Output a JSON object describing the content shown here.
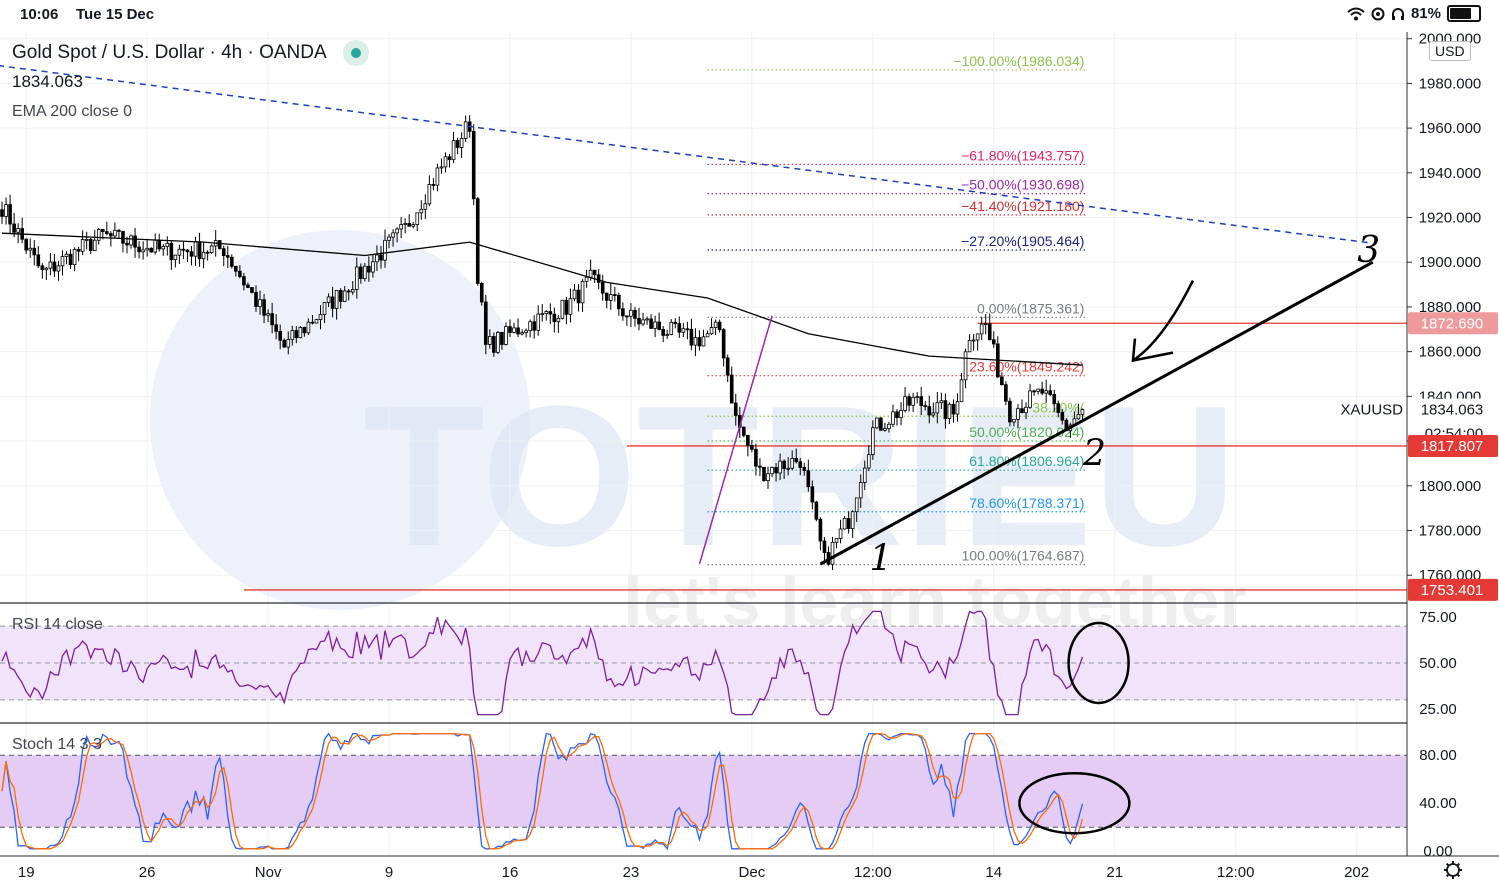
{
  "status_bar": {
    "time": "10:06",
    "date": "Tue 15 Dec",
    "battery": "81%",
    "battery_fraction": 0.81
  },
  "header": {
    "symbol_title": "Gold Spot / U.S. Dollar · 4h · OANDA",
    "last_price": "1834.063",
    "indicator": "EMA 200 close 0",
    "currency": "USD"
  },
  "colors": {
    "ema": "#000000",
    "trendline_dashed": "#1a3fbf",
    "rsi": "#7b1fa2",
    "stoch_k": "#2962ff",
    "stoch_d": "#ff6d00",
    "band_rsi": "#f1e4fa",
    "band_stoch": "#e4ccf4",
    "level_red": "#e53935",
    "watermark": "#dde6f5"
  },
  "watermark": {
    "text": "TOTRIEU",
    "tagline": "let's learn together"
  },
  "axis": {
    "price_ticks": [
      "2000.000",
      "1980.000",
      "1960.000",
      "1940.000",
      "1920.000",
      "1900.000",
      "1880.000",
      "1860.000",
      "1840.000",
      "1820.000",
      "1800.000",
      "1780.000",
      "1760.000"
    ],
    "price_tick_values": [
      2000,
      1980,
      1960,
      1940,
      1920,
      1900,
      1880,
      1860,
      1840,
      1820,
      1800,
      1780,
      1760
    ],
    "time_ticks": [
      "19",
      "26",
      "Nov",
      "9",
      "16",
      "23",
      "Dec",
      "12:00",
      "14",
      "21",
      "12:00",
      "202"
    ],
    "time_tick_index": [
      6,
      36,
      66,
      96,
      126,
      156,
      186,
      216,
      246,
      276,
      306,
      336
    ],
    "rsi_ticks": [
      "75.00",
      "50.00",
      "25.00"
    ],
    "rsi_tick_values": [
      75,
      50,
      25
    ],
    "stoch_ticks": [
      "80.00",
      "40.00",
      "0.00"
    ],
    "stoch_tick_values": [
      80,
      40,
      0
    ]
  },
  "price_tags": [
    {
      "label": "1872.690",
      "value": 1872.69,
      "bg": "#ef9a9a"
    },
    {
      "symbol": "XAUUSD",
      "label": "1834.063",
      "value": 1834.063,
      "countdown": "02:54:00"
    },
    {
      "label": "1817.807",
      "value": 1817.807,
      "bg": "#e53935"
    },
    {
      "label": "1753.401",
      "value": 1753.401,
      "bg": "#e53935"
    }
  ],
  "fib_levels": [
    {
      "label": "−100.00%(1986.034)",
      "value": 1986.034,
      "color": "#8bc34a"
    },
    {
      "label": "−61.80%(1943.757)",
      "value": 1943.757,
      "color": "#e91e63"
    },
    {
      "label": "−50.00%(1930.698)",
      "value": 1930.698,
      "color": "#9c27b0"
    },
    {
      "label": "−41.40%(1921.180)",
      "value": 1921.18,
      "color": "#d32f2f"
    },
    {
      "label": "−27.20%(1905.464)",
      "value": 1905.464,
      "color": "#1a237e"
    },
    {
      "label": "0.00%(1875.361)",
      "value": 1875.361,
      "color": "#787b86"
    },
    {
      "label": "23.60%(1849.242)",
      "value": 1849.242,
      "color": "#e53935"
    },
    {
      "label": "38.20%(",
      "value": 1831.086,
      "color": "#8bc34a"
    },
    {
      "label": "50.00%(1820.024)",
      "value": 1820.024,
      "color": "#4caf50"
    },
    {
      "label": "61.80%(1806.964)",
      "value": 1806.964,
      "color": "#26a69a"
    },
    {
      "label": "78.60%(1788.371)",
      "value": 1788.371,
      "color": "#2196f3"
    },
    {
      "label": "100.00%(1764.687)",
      "value": 1764.687,
      "color": "#787b86"
    }
  ],
  "horizontal_levels": [
    {
      "value": 1872.69,
      "from_bar": 242,
      "color": "#e53935"
    },
    {
      "value": 1817.807,
      "from_bar": 155,
      "color": "#e53935"
    },
    {
      "value": 1753.401,
      "from_bar": 60,
      "color": "#e53935"
    }
  ],
  "trendlines": [
    {
      "kind": "dashed-resistance",
      "from": [
        -1,
        1988
      ],
      "to": [
        340,
        1908.5
      ],
      "color": "#1a3fbf"
    },
    {
      "kind": "ascending-support",
      "from": [
        203,
        1765
      ],
      "to": [
        340,
        1900
      ],
      "color": "#000000"
    },
    {
      "kind": "impulse",
      "from": [
        173,
        1765
      ],
      "to": [
        191,
        1876
      ],
      "color": "#9c27b0"
    }
  ],
  "handwriting": [
    {
      "kind": "number",
      "text": "1",
      "at": [
        218,
        1762
      ]
    },
    {
      "kind": "number",
      "text": "2",
      "at": [
        271,
        1809
      ]
    },
    {
      "kind": "number",
      "text": "3",
      "at": [
        339,
        1900
      ]
    },
    {
      "kind": "arrow",
      "at": [
        283,
        1856
      ]
    },
    {
      "kind": "circle",
      "pane": "rsi",
      "at": [
        272,
        50
      ]
    },
    {
      "kind": "circle",
      "pane": "stoch",
      "at": [
        266,
        40
      ]
    }
  ],
  "chart_data": {
    "type": "candlestick",
    "title": "Gold Spot / U.S. Dollar · 4h · OANDA",
    "xlabel": "",
    "ylabel": "USD",
    "ylim": [
      1748,
      2003
    ],
    "bar_count": 269,
    "projected_bars": 80,
    "key_points": [
      {
        "label": "local high",
        "bar": 116,
        "value": 1964
      },
      {
        "label": "swing low",
        "bar": 204,
        "value": 1765
      },
      {
        "label": "swing high",
        "bar": 243,
        "value": 1875
      },
      {
        "label": "last",
        "bar": 268,
        "value": 1834.063
      }
    ],
    "ema200_points": [
      [
        0,
        1913
      ],
      [
        50,
        1909
      ],
      [
        90,
        1903
      ],
      [
        116,
        1909
      ],
      [
        150,
        1891
      ],
      [
        175,
        1884
      ],
      [
        200,
        1868
      ],
      [
        230,
        1858
      ],
      [
        268,
        1854
      ]
    ],
    "rsi": {
      "name": "RSI 14 close",
      "ylim": [
        18,
        82
      ],
      "band": [
        30,
        70
      ]
    },
    "stoch": {
      "name": "Stoch 14 3 3",
      "ylim": [
        -4,
        106
      ],
      "band": [
        20,
        80
      ]
    }
  }
}
